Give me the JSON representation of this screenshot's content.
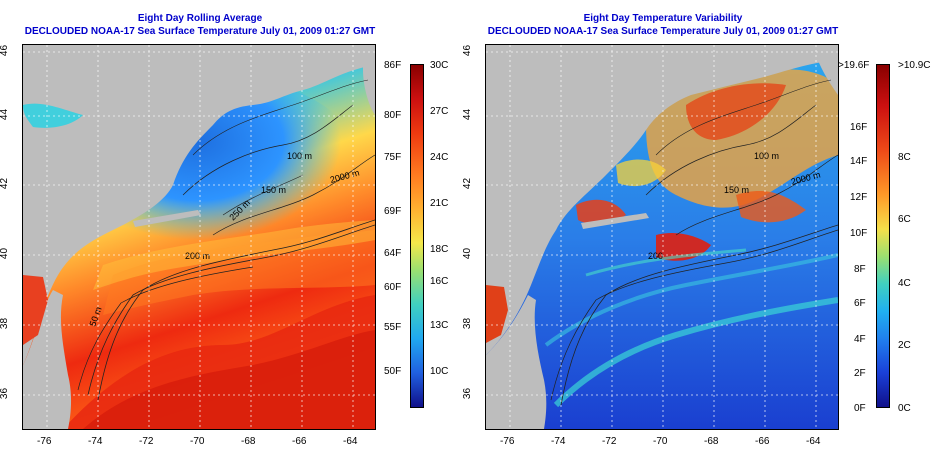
{
  "left_panel": {
    "title_line1": "Eight Day Rolling Average",
    "title_line2": "DECLOUDED NOAA-17 Sea Surface Temperature July 01, 2009 01:27 GMT",
    "contour_labels": [
      "100 m",
      "250 m",
      "150 m",
      "2000 m",
      "200 m",
      "50 m"
    ],
    "colorbar_f": [
      "86F",
      "80F",
      "75F",
      "69F",
      "64F",
      "60F",
      "55F",
      "50F"
    ],
    "colorbar_c": [
      "30C",
      "27C",
      "24C",
      "21C",
      "18C",
      "16C",
      "13C",
      "10C"
    ]
  },
  "right_panel": {
    "title_line1": "Eight Day Temperature Variability",
    "title_line2": "DECLOUDED NOAA-17 Sea Surface Temperature July 01, 2009 01:27 GMT",
    "contour_labels": [
      "100 m",
      "150 m",
      "2000 m",
      "200"
    ],
    "colorbar_f": [
      ">19.6F",
      "16F",
      "14F",
      "12F",
      "10F",
      "8F",
      "6F",
      "4F",
      "2F",
      "0F"
    ],
    "colorbar_c": [
      ">10.9C",
      "8C",
      "6C",
      "4C",
      "2C",
      "0C"
    ]
  },
  "lon_labels": [
    "-76",
    "-74",
    "-72",
    "-70",
    "-68",
    "-66",
    "-64"
  ],
  "lat_labels": [
    "46",
    "44",
    "42",
    "40",
    "38",
    "36"
  ],
  "colors": {
    "title": "#0000cc",
    "land": "#bdbdbd",
    "sst_cold": "#1010a0",
    "sst_hot": "#b00000"
  }
}
